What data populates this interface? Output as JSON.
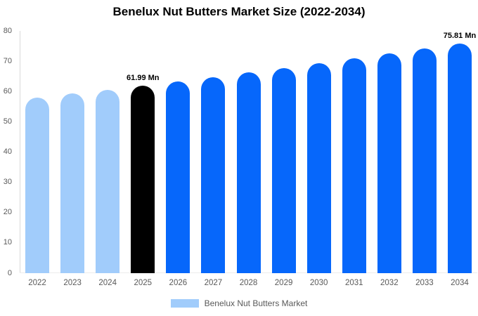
{
  "title": "Benelux Nut Butters Market Size (2022-2034)",
  "legend": {
    "label": "Benelux Nut Butters Market",
    "swatch_color": "#a1ccfb"
  },
  "colors": {
    "historical_bar": "#a1ccfb",
    "base_year_bar": "#000000",
    "forecast_bar": "#0667fb",
    "axis_text": "#595959",
    "axis_line": "#d9d9d9",
    "data_label_text": "#000000"
  },
  "chart_data": {
    "type": "bar",
    "title": "Benelux Nut Butters Market Size (2022-2034)",
    "unit": "Mn",
    "categories": [
      "2022",
      "2023",
      "2024",
      "2025",
      "2026",
      "2027",
      "2028",
      "2029",
      "2030",
      "2031",
      "2032",
      "2033",
      "2034"
    ],
    "values": [
      57.9,
      59.3,
      60.6,
      61.99,
      63.4,
      64.8,
      66.3,
      67.8,
      69.3,
      70.9,
      72.5,
      74.1,
      75.81
    ],
    "bar_colors": [
      "#a1ccfb",
      "#a1ccfb",
      "#a1ccfb",
      "#000000",
      "#0667fb",
      "#0667fb",
      "#0667fb",
      "#0667fb",
      "#0667fb",
      "#0667fb",
      "#0667fb",
      "#0667fb",
      "#0667fb"
    ],
    "data_labels": [
      null,
      null,
      null,
      "61.99 Mn",
      null,
      null,
      null,
      null,
      null,
      null,
      null,
      null,
      "75.81 Mn"
    ],
    "xlabel": "",
    "ylabel": "",
    "ylim": [
      0,
      80
    ],
    "yticks": [
      0,
      10,
      20,
      30,
      40,
      50,
      60,
      70,
      80
    ],
    "grid": false,
    "legend_position": "bottom",
    "legend_entries": [
      "Benelux Nut Butters Market"
    ]
  }
}
